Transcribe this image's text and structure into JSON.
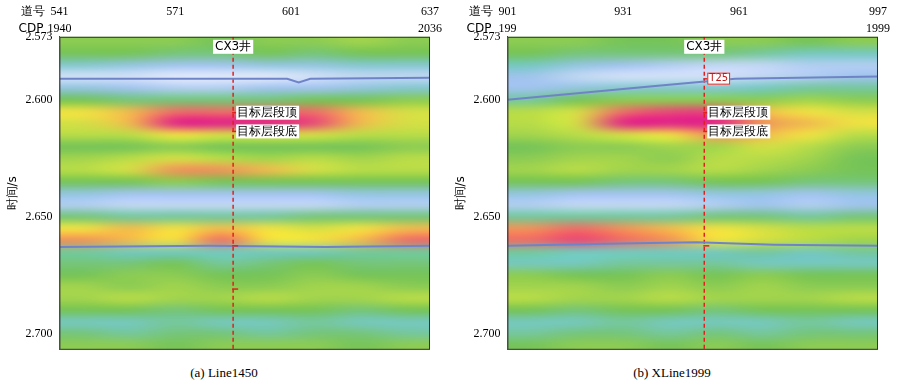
{
  "chart_data": [
    {
      "type": "heatmap",
      "title": "(a) Line1450",
      "x_label": "道号",
      "x2_label": "CDP",
      "y_label": "时间/s",
      "xlim": [
        541,
        637
      ],
      "xticks": [
        541,
        571,
        601,
        637
      ],
      "x2lim": [
        1940,
        2036
      ],
      "x2ticks": [
        1940,
        2036
      ],
      "ylim": [
        2.573,
        2.707
      ],
      "yticks": [
        2.573,
        {
          "value": 2.6,
          "label": "2.600"
        },
        {
          "value": 2.65,
          "label": "2.650"
        },
        {
          "value": 2.7,
          "label": "2.700"
        }
      ],
      "grid": false,
      "zlim": [
        -1,
        1
      ],
      "x": [
        547,
        559,
        571,
        583,
        595,
        607,
        619,
        631
      ],
      "y": [
        2.575,
        2.58,
        2.585,
        2.59,
        2.595,
        2.6,
        2.605,
        2.61,
        2.615,
        2.62,
        2.625,
        2.63,
        2.635,
        2.64,
        2.645,
        2.65,
        2.655,
        2.66,
        2.665,
        2.67,
        2.675,
        2.68,
        2.685,
        2.69,
        2.695,
        2.7,
        2.705
      ],
      "amplitude": [
        [
          0.1,
          0.1,
          0.1,
          0.0,
          0.1,
          0.1,
          0.2,
          0.1
        ],
        [
          0.0,
          0.0,
          -0.1,
          -0.1,
          0.0,
          -0.1,
          0.0,
          0.0
        ],
        [
          -0.4,
          -0.5,
          -0.6,
          -0.6,
          -0.5,
          -0.5,
          -0.4,
          -0.4
        ],
        [
          -0.9,
          -0.9,
          -1.0,
          -1.0,
          -1.0,
          -0.9,
          -0.8,
          -0.8
        ],
        [
          -0.5,
          -0.6,
          -0.7,
          -0.7,
          -0.6,
          -0.6,
          -0.5,
          -0.4
        ],
        [
          0.0,
          -0.1,
          -0.1,
          -0.1,
          -0.1,
          0.0,
          0.0,
          0.1
        ],
        [
          0.5,
          0.6,
          0.8,
          0.8,
          0.8,
          0.8,
          0.6,
          0.4
        ],
        [
          0.4,
          0.6,
          1.0,
          1.0,
          1.0,
          0.9,
          0.6,
          0.4
        ],
        [
          0.3,
          0.3,
          0.5,
          0.4,
          0.4,
          0.4,
          0.3,
          0.3
        ],
        [
          0.0,
          0.0,
          0.1,
          0.0,
          0.0,
          0.0,
          0.0,
          0.1
        ],
        [
          0.2,
          0.3,
          0.4,
          0.3,
          0.2,
          0.3,
          0.2,
          0.3
        ],
        [
          0.3,
          0.4,
          0.7,
          0.7,
          0.6,
          0.4,
          0.3,
          0.3
        ],
        [
          0.0,
          0.0,
          0.1,
          0.0,
          0.0,
          0.0,
          0.0,
          0.0
        ],
        [
          -0.5,
          -0.6,
          -0.6,
          -0.6,
          -0.6,
          -0.6,
          -0.5,
          -0.5
        ],
        [
          -0.7,
          -0.8,
          -0.8,
          -0.8,
          -0.8,
          -0.8,
          -0.7,
          -0.7
        ],
        [
          -0.1,
          -0.2,
          -0.2,
          -0.2,
          -0.2,
          -0.1,
          -0.1,
          -0.1
        ],
        [
          0.5,
          0.6,
          0.5,
          0.6,
          0.5,
          0.4,
          0.5,
          0.6
        ],
        [
          0.7,
          0.6,
          0.5,
          0.8,
          0.5,
          0.5,
          0.6,
          0.8
        ],
        [
          -0.2,
          -0.3,
          -0.3,
          -0.3,
          -0.3,
          -0.3,
          -0.2,
          -0.2
        ],
        [
          -0.1,
          -0.1,
          0.0,
          -0.2,
          -0.1,
          0.0,
          -0.1,
          -0.1
        ],
        [
          0.0,
          0.1,
          0.1,
          0.0,
          0.0,
          0.1,
          0.0,
          0.0
        ],
        [
          0.2,
          0.1,
          0.2,
          0.1,
          0.1,
          0.2,
          0.2,
          0.1
        ],
        [
          0.2,
          0.3,
          0.2,
          0.2,
          0.3,
          0.2,
          0.2,
          0.3
        ],
        [
          0.0,
          0.0,
          -0.1,
          0.0,
          0.0,
          0.0,
          -0.1,
          0.0
        ],
        [
          -0.3,
          -0.3,
          -0.2,
          -0.3,
          -0.3,
          -0.2,
          -0.3,
          -0.3
        ],
        [
          -0.1,
          -0.2,
          -0.1,
          -0.1,
          -0.2,
          -0.1,
          -0.1,
          -0.2
        ],
        [
          0.1,
          0.1,
          0.0,
          0.1,
          0.1,
          0.1,
          0.0,
          0.1
        ]
      ],
      "horizons": [
        {
          "color": "#6f84c6",
          "x": [
            541,
            600,
            603,
            606,
            637
          ],
          "y": [
            2.591,
            2.591,
            2.5925,
            2.591,
            2.5905
          ]
        },
        {
          "color": "#6f84c6",
          "x": [
            541,
            580,
            610,
            637
          ],
          "y": [
            2.663,
            2.6625,
            2.663,
            2.6625
          ]
        }
      ],
      "well": {
        "name": "CX3井",
        "x": 586,
        "color": "#e0201e",
        "line_style": "dashed",
        "marks": [
          2.6055,
          2.6135,
          2.6625,
          2.681
        ]
      },
      "annotations": [
        {
          "text": "目标层段顶",
          "x": 586,
          "y": 2.6055
        },
        {
          "text": "目标层段底",
          "x": 586,
          "y": 2.6135
        }
      ]
    },
    {
      "type": "heatmap",
      "title": "(b) XLine1999",
      "x_label": "道号",
      "x2_label": "CDP",
      "y_label": "时间/s",
      "xlim": [
        901,
        997
      ],
      "xticks": [
        901,
        931,
        961,
        997
      ],
      "x2lim": [
        199,
        1999
      ],
      "x2ticks": [
        199,
        1999
      ],
      "ylim": [
        2.573,
        2.707
      ],
      "yticks": [
        2.573,
        {
          "value": 2.6,
          "label": "2.600"
        },
        {
          "value": 2.65,
          "label": "2.650"
        },
        {
          "value": 2.7,
          "label": "2.700"
        }
      ],
      "grid": false,
      "zlim": [
        -1,
        1
      ],
      "x": [
        907,
        919,
        931,
        943,
        955,
        967,
        979,
        991
      ],
      "y": [
        2.575,
        2.58,
        2.585,
        2.59,
        2.595,
        2.6,
        2.605,
        2.61,
        2.615,
        2.62,
        2.625,
        2.63,
        2.635,
        2.64,
        2.645,
        2.65,
        2.655,
        2.66,
        2.665,
        2.67,
        2.675,
        2.68,
        2.685,
        2.69,
        2.695,
        2.7,
        2.705
      ],
      "amplitude": [
        [
          0.1,
          0.1,
          0.0,
          0.0,
          0.1,
          0.1,
          0.0,
          0.1
        ],
        [
          0.0,
          -0.1,
          -0.1,
          -0.1,
          -0.1,
          -0.2,
          -0.3,
          -0.3
        ],
        [
          -0.3,
          -0.5,
          -0.6,
          -0.7,
          -0.8,
          -0.8,
          -0.7,
          -0.7
        ],
        [
          -0.6,
          -0.8,
          -0.9,
          -0.9,
          -0.9,
          -0.8,
          -0.7,
          -0.6
        ],
        [
          -0.6,
          -0.5,
          -0.4,
          -0.4,
          -0.4,
          -0.3,
          -0.2,
          -0.2
        ],
        [
          -0.2,
          0.0,
          0.1,
          0.1,
          0.1,
          0.1,
          0.2,
          0.1
        ],
        [
          0.3,
          0.4,
          0.8,
          0.9,
          0.9,
          0.6,
          0.5,
          0.4
        ],
        [
          0.3,
          0.4,
          1.0,
          1.0,
          1.0,
          0.7,
          0.6,
          0.5
        ],
        [
          0.2,
          0.3,
          0.4,
          0.5,
          0.7,
          0.6,
          0.5,
          0.3
        ],
        [
          0.0,
          0.1,
          0.1,
          0.2,
          0.2,
          0.4,
          0.3,
          0.1
        ],
        [
          0.1,
          0.2,
          0.2,
          0.1,
          0.3,
          0.3,
          0.2,
          0.0
        ],
        [
          0.2,
          0.3,
          0.2,
          0.2,
          0.3,
          0.2,
          0.1,
          0.0
        ],
        [
          0.0,
          0.0,
          -0.1,
          -0.1,
          0.0,
          0.0,
          -0.1,
          -0.1
        ],
        [
          -0.5,
          -0.6,
          -0.6,
          -0.6,
          -0.5,
          -0.5,
          -0.6,
          -0.5
        ],
        [
          -0.7,
          -0.8,
          -0.8,
          -0.8,
          -0.7,
          -0.6,
          -0.7,
          -0.6
        ],
        [
          -0.2,
          -0.2,
          -0.2,
          -0.2,
          -0.1,
          -0.1,
          -0.2,
          -0.1
        ],
        [
          0.7,
          0.8,
          0.7,
          0.6,
          0.5,
          0.4,
          0.3,
          0.3
        ],
        [
          0.8,
          0.9,
          0.8,
          0.7,
          0.5,
          0.4,
          0.3,
          0.2
        ],
        [
          -0.2,
          -0.3,
          -0.3,
          -0.3,
          -0.3,
          -0.2,
          -0.3,
          -0.2
        ],
        [
          -0.3,
          -0.3,
          -0.2,
          -0.2,
          -0.2,
          -0.3,
          -0.3,
          -0.3
        ],
        [
          0.1,
          0.0,
          0.0,
          0.1,
          0.0,
          0.1,
          0.0,
          0.0
        ],
        [
          0.2,
          0.2,
          0.1,
          0.2,
          0.1,
          0.2,
          0.1,
          0.1
        ],
        [
          0.3,
          0.2,
          0.2,
          0.3,
          0.2,
          0.2,
          0.2,
          0.3
        ],
        [
          0.0,
          -0.1,
          0.0,
          0.0,
          -0.1,
          0.0,
          0.0,
          0.0
        ],
        [
          -0.3,
          -0.3,
          -0.2,
          -0.3,
          -0.3,
          -0.3,
          -0.2,
          -0.3
        ],
        [
          -0.2,
          -0.1,
          -0.1,
          -0.2,
          -0.1,
          -0.2,
          -0.1,
          -0.1
        ],
        [
          0.0,
          0.1,
          0.1,
          0.0,
          0.1,
          0.0,
          0.1,
          0.1
        ]
      ],
      "horizons": [
        {
          "name": "T25",
          "color": "#6f84c6",
          "x": [
            901,
            940,
            960,
            997
          ],
          "y": [
            2.6,
            2.594,
            2.591,
            2.59
          ]
        },
        {
          "color": "#6f84c6",
          "x": [
            901,
            930,
            950,
            970,
            997
          ],
          "y": [
            2.6625,
            2.6615,
            2.661,
            2.662,
            2.6625
          ]
        }
      ],
      "well": {
        "name": "CX3井",
        "x": 952,
        "color": "#e0201e",
        "line_style": "dashed",
        "marks": [
          2.591,
          2.6055,
          2.6135,
          2.6625
        ]
      },
      "annotations": [
        {
          "text": "目标层段顶",
          "x": 952,
          "y": 2.6055
        },
        {
          "text": "目标层段底",
          "x": 952,
          "y": 2.6135
        }
      ]
    }
  ]
}
